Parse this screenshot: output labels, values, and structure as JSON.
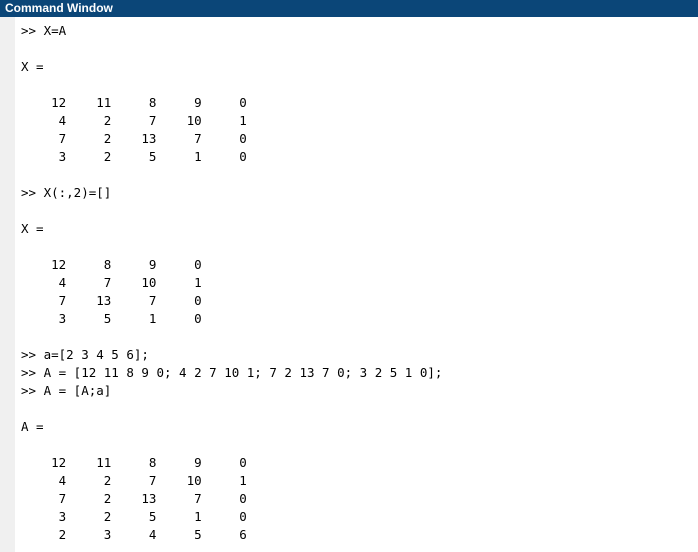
{
  "window": {
    "title": "Command Window"
  },
  "colors": {
    "title_bar": "#0b4678",
    "title_text": "#ffffff",
    "gutter": "#f0f0f0",
    "background": "#ffffff",
    "text": "#000000"
  },
  "console": {
    "prompt": ">>",
    "lines": [
      ">> X=A",
      "",
      "X =",
      "",
      "    12    11     8     9     0",
      "     4     2     7    10     1",
      "     7     2    13     7     0",
      "     3     2     5     1     0",
      "",
      ">> X(:,2)=[]",
      "",
      "X =",
      "",
      "    12     8     9     0",
      "     4     7    10     1",
      "     7    13     7     0",
      "     3     5     1     0",
      "",
      ">> a=[2 3 4 5 6];",
      ">> A = [12 11 8 9 0; 4 2 7 10 1; 7 2 13 7 0; 3 2 5 1 0];",
      ">> A = [A;a]",
      "",
      "A =",
      "",
      "    12    11     8     9     0",
      "     4     2     7    10     1",
      "     7     2    13     7     0",
      "     3     2     5     1     0",
      "     2     3     4     5     6"
    ]
  }
}
